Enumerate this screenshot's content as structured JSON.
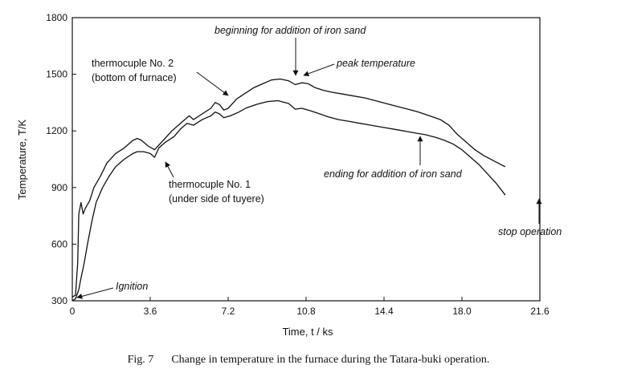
{
  "chart_data": {
    "type": "line",
    "ylabel": "Temperature, T/K",
    "xlabel": "Time, t / ks",
    "xlim": [
      0,
      21.6
    ],
    "ylim": [
      300,
      1800
    ],
    "xticks": [
      "0",
      "3.6",
      "7.2",
      "10.8",
      "14.4",
      "18.0",
      "21.6"
    ],
    "yticks": [
      "300",
      "600",
      "900",
      "1200",
      "1500",
      "1800"
    ],
    "grid": false,
    "series": [
      {
        "name": "thermocuple No. 2 (bottom of furnace)",
        "x": [
          0,
          0.15,
          0.25,
          0.3,
          0.4,
          0.5,
          0.6,
          0.8,
          1.0,
          1.3,
          1.6,
          2.0,
          2.4,
          2.8,
          3.0,
          3.2,
          3.5,
          3.8,
          4.2,
          4.6,
          5.0,
          5.4,
          5.6,
          6.0,
          6.4,
          6.6,
          6.8,
          7.0,
          7.2,
          7.6,
          8.0,
          8.4,
          8.8,
          9.2,
          9.6,
          10.0,
          10.3,
          10.6,
          10.9,
          11.2,
          11.6,
          12.0,
          12.5,
          13.0,
          13.5,
          14.0,
          14.5,
          15.0,
          15.5,
          16.0,
          16.5,
          17.0,
          17.4,
          17.8,
          18.2,
          18.6,
          19.0,
          19.5,
          20.0
        ],
        "y": [
          320,
          330,
          500,
          760,
          820,
          760,
          790,
          830,
          900,
          960,
          1030,
          1080,
          1110,
          1150,
          1160,
          1150,
          1120,
          1100,
          1150,
          1200,
          1240,
          1280,
          1260,
          1290,
          1320,
          1350,
          1340,
          1310,
          1320,
          1370,
          1400,
          1430,
          1450,
          1470,
          1475,
          1465,
          1445,
          1455,
          1450,
          1430,
          1415,
          1405,
          1395,
          1385,
          1375,
          1360,
          1345,
          1330,
          1315,
          1300,
          1280,
          1260,
          1230,
          1180,
          1140,
          1100,
          1070,
          1040,
          1010
        ]
      },
      {
        "name": "thermocuple No. 1 (under side of tuyere)",
        "x": [
          0,
          0.15,
          0.3,
          0.4,
          0.55,
          0.7,
          0.9,
          1.1,
          1.4,
          1.7,
          2.0,
          2.4,
          2.8,
          3.0,
          3.3,
          3.6,
          3.8,
          4.0,
          4.3,
          4.7,
          5.0,
          5.3,
          5.6,
          6.0,
          6.4,
          6.6,
          6.8,
          7.0,
          7.3,
          7.7,
          8.0,
          8.5,
          9.0,
          9.5,
          10.0,
          10.3,
          10.6,
          10.9,
          11.3,
          11.8,
          12.3,
          12.8,
          13.3,
          13.8,
          14.3,
          14.8,
          15.3,
          15.8,
          16.3,
          16.8,
          17.2,
          17.6,
          18.0,
          18.4,
          18.8,
          19.2,
          19.6,
          20.0
        ],
        "y": [
          300,
          310,
          360,
          420,
          500,
          600,
          720,
          820,
          900,
          960,
          1010,
          1050,
          1080,
          1090,
          1090,
          1080,
          1060,
          1110,
          1140,
          1170,
          1210,
          1240,
          1230,
          1260,
          1280,
          1300,
          1290,
          1270,
          1280,
          1300,
          1320,
          1340,
          1355,
          1360,
          1345,
          1315,
          1320,
          1310,
          1295,
          1275,
          1260,
          1250,
          1240,
          1230,
          1220,
          1210,
          1200,
          1190,
          1180,
          1165,
          1150,
          1130,
          1100,
          1060,
          1020,
          970,
          920,
          860
        ]
      }
    ],
    "annotations": [
      {
        "text": "beginning for addition of iron sand",
        "italic": true
      },
      {
        "text": "peak temperature",
        "italic": true
      },
      {
        "text": "thermocuple No. 2",
        "italic": false
      },
      {
        "text": "(bottom of furnace)",
        "italic": false
      },
      {
        "text": "thermocuple No. 1",
        "italic": false
      },
      {
        "text": "(under side of tuyere)",
        "italic": false
      },
      {
        "text": "ending for addition of iron sand",
        "italic": true
      },
      {
        "text": "stop operation",
        "italic": true
      },
      {
        "text": "Ignition",
        "italic": true
      }
    ]
  },
  "caption": {
    "fig": "Fig. 7",
    "text": "Change in temperature in the furnace during the Tatara-buki operation."
  }
}
